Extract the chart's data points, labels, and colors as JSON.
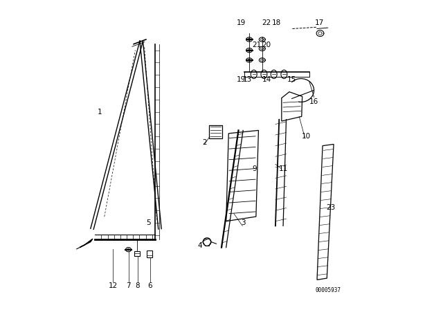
{
  "bg_color": "#ffffff",
  "line_color": "#000000",
  "fig_width": 6.4,
  "fig_height": 4.48,
  "dpi": 100,
  "watermark": "00005937"
}
